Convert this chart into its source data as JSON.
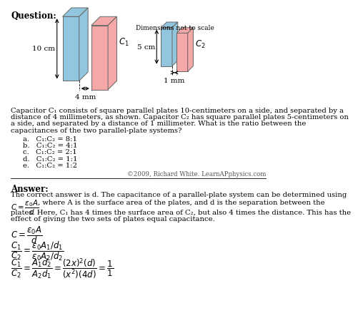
{
  "title": "Question:",
  "answer_title": "Answer:",
  "bg_color": "#ffffff",
  "question_text": [
    "Capacitor C₁ consists of square parallel plates 10-centimeters on a side, and separated by a",
    "distance of 4 millimeters, as shown. Capacitor C₂ has square parallel plates 5-centimeters on",
    "a side, and separated by a distance of 1 millimeter. What is the ratio between the",
    "capacitances of the two parallel-plate systems?"
  ],
  "choices": [
    "a.   C₁:C₂ = 8:1",
    "b.   C₁:C₂ = 4:1",
    "c.   C₁:C₂ = 2:1",
    "d.   C₁:C₂ = 1:1",
    "e.   C₁:C₂ = 1:2"
  ],
  "copyright": "©2009, Richard White. LearnAPphysics.com",
  "answer_line1": "The correct answer is d. The capacitance of a parallel-plate system can be determined using",
  "answer_line2": ", where A is the surface area of the plates, and d is the separation between the",
  "answer_line3": "plates. Here, C₁ has 4 times the surface area of C₂, but also 4 times the distance. This has the",
  "answer_line4": "effect of giving the two sets of plates equal capacitance.",
  "dims_note": "Dimensions not to scale",
  "cap1_label": "$C_1$",
  "cap2_label": "$C_2$",
  "cap1_height": "10 cm",
  "cap2_height": "5 cm",
  "cap1_width": "4 mm",
  "cap2_width": "1 mm",
  "blue_color": "#92C5DE",
  "pink_color": "#F4A9A8",
  "edge_color": "#666666"
}
